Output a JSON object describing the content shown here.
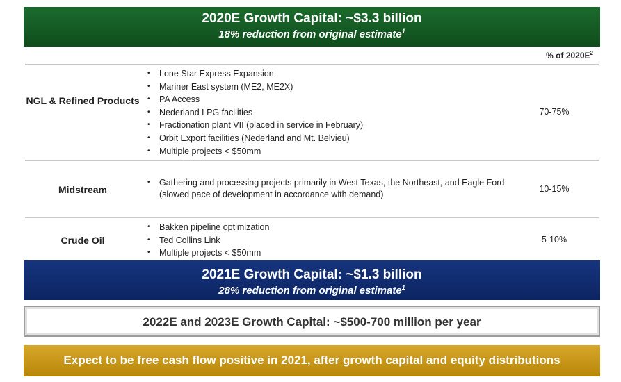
{
  "banner_2020": {
    "title": "2020E Growth Capital: ~$3.3 billion",
    "subtitle": "18% reduction from original estimate",
    "footnote": "1"
  },
  "pct_header": {
    "label": "% of 2020E",
    "footnote": "2"
  },
  "segments": [
    {
      "category": "NGL & Refined Products",
      "bullets": [
        "Lone Star Express Expansion",
        "Mariner East system (ME2, ME2X)",
        "PA Access",
        "Nederland LPG facilities",
        "Fractionation plant VII (placed in service in February)",
        "Orbit Export facilities (Nederland and Mt. Belvieu)",
        "Multiple projects < $50mm"
      ],
      "percent": "70-75%"
    },
    {
      "category": "Midstream",
      "bullets": [
        "Gathering and processing projects primarily in West Texas, the Northeast, and Eagle Ford (slowed pace of development in accordance with demand)"
      ],
      "percent": "10-15%"
    },
    {
      "category": "Crude Oil",
      "bullets": [
        "Bakken pipeline optimization",
        "Ted Collins Link",
        "Multiple projects < $50mm"
      ],
      "percent": "5-10%"
    }
  ],
  "banner_2021": {
    "title": "2021E Growth Capital: ~$1.3 billion",
    "subtitle": "28% reduction from original estimate",
    "footnote": "1"
  },
  "banner_2022": {
    "title": "2022E and 2023E Growth Capital: ~$500-700 million per year"
  },
  "banner_fcf": {
    "title": "Expect to be free cash flow positive in 2021, after growth capital and equity distributions"
  },
  "colors": {
    "green": "#155724",
    "blue": "#0f2b6e",
    "gold": "#c9970f",
    "rule": "#c8c8c8"
  }
}
